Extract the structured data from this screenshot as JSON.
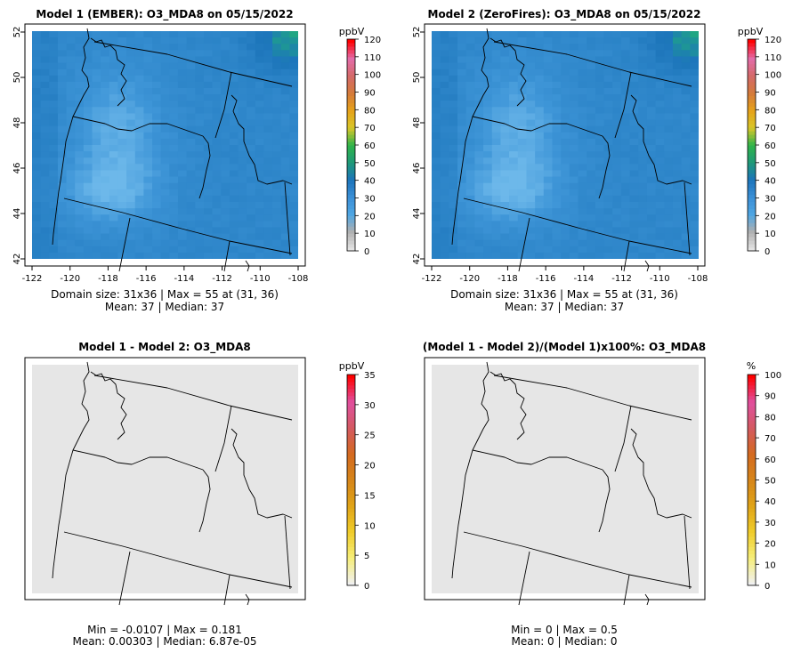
{
  "panels": [
    {
      "title": "Model 1 (EMBER): O3_MDA8 on 05/15/2022",
      "stats_line1": "Domain size: 31x36 | Max = 55 at (31, 36)",
      "stats_line2": "Mean: 37 |  Median: 37",
      "unit": "ppbV",
      "legend_ticks": [
        "0",
        "10",
        "20",
        "30",
        "40",
        "50",
        "60",
        "70",
        "80",
        "90",
        "100",
        "110",
        "120"
      ],
      "x_ticks": [
        "-122",
        "-120",
        "-118",
        "-116",
        "-114",
        "-112",
        "-110",
        "-108"
      ],
      "y_ticks": [
        "42",
        "44",
        "46",
        "48",
        "50",
        "52"
      ]
    },
    {
      "title": "Model 2 (ZeroFires): O3_MDA8 on 05/15/2022",
      "stats_line1": "Domain size: 31x36 | Max = 55 at (31, 36)",
      "stats_line2": "Mean: 37 |  Median: 37",
      "unit": "ppbV",
      "legend_ticks": [
        "0",
        "10",
        "20",
        "30",
        "40",
        "50",
        "60",
        "70",
        "80",
        "90",
        "100",
        "110",
        "120"
      ],
      "x_ticks": [
        "-122",
        "-120",
        "-118",
        "-116",
        "-114",
        "-112",
        "-110",
        "-108"
      ],
      "y_ticks": [
        "42",
        "44",
        "46",
        "48",
        "50",
        "52"
      ]
    },
    {
      "title": "Model 1 - Model 2: O3_MDA8",
      "stats_line1": "Min = -0.0107 | Max = 0.181",
      "stats_line2": "Mean: 0.00303 |  Median: 6.87e-05",
      "unit": "ppbV",
      "legend_ticks": [
        "0",
        "5",
        "10",
        "15",
        "20",
        "25",
        "30",
        "35"
      ]
    },
    {
      "title": "(Model 1 - Model 2)/(Model 1)x100%: O3_MDA8",
      "stats_line1": "Min = 0 | Max = 0.5",
      "stats_line2": "Mean: 0 |  Median: 0",
      "unit": "%",
      "legend_ticks": [
        "0",
        "10",
        "20",
        "30",
        "40",
        "50",
        "60",
        "70",
        "80",
        "90",
        "100"
      ]
    }
  ],
  "chart_data": [
    {
      "type": "heatmap",
      "title": "Model 1 (EMBER): O3_MDA8 on 05/15/2022",
      "variable": "O3_MDA8",
      "units": "ppbV",
      "grid_cols": 31,
      "grid_rows": 36,
      "x_range": [
        -122,
        -108
      ],
      "y_range": [
        42,
        52
      ],
      "color_scale": [
        0,
        120
      ],
      "max": 55,
      "max_at": [
        31,
        36
      ],
      "mean": 37,
      "median": 37,
      "colors": {
        "low": "#63b0e5",
        "mid": "#1d76bb",
        "high": "#1a9e80"
      }
    },
    {
      "type": "heatmap",
      "title": "Model 2 (ZeroFires): O3_MDA8 on 05/15/2022",
      "variable": "O3_MDA8",
      "units": "ppbV",
      "grid_cols": 31,
      "grid_rows": 36,
      "x_range": [
        -122,
        -108
      ],
      "y_range": [
        42,
        52
      ],
      "color_scale": [
        0,
        120
      ],
      "max": 55,
      "max_at": [
        31,
        36
      ],
      "mean": 37,
      "median": 37
    },
    {
      "type": "heatmap",
      "title": "Model 1 - Model 2: O3_MDA8",
      "units": "ppbV",
      "color_scale": [
        0,
        35
      ],
      "min": -0.0107,
      "max": 0.181,
      "mean": 0.00303,
      "median": 6.87e-05
    },
    {
      "type": "heatmap",
      "title": "(Model 1 - Model 2)/(Model 1)x100%: O3_MDA8",
      "units": "%",
      "color_scale": [
        0,
        100
      ],
      "min": 0,
      "max": 0.5,
      "mean": 0,
      "median": 0
    }
  ],
  "colors": {
    "ozone_ramp": [
      "#e3e3e3",
      "#b0b0b0",
      "#4fa6e3",
      "#3b8fd6",
      "#1c74bb",
      "#1f9a78",
      "#2fb44a",
      "#d8c62a",
      "#e6a21a",
      "#d47a3b",
      "#d46a6a",
      "#e36caa",
      "#ff0000"
    ],
    "diff_ramp": [
      "#f0f0f0",
      "#f6ee7a",
      "#f0cc2a",
      "#e0a418",
      "#d6861a",
      "#d46a20",
      "#d45a60",
      "#e050a0",
      "#ff0000"
    ],
    "no_change": "#e6e6e6"
  }
}
